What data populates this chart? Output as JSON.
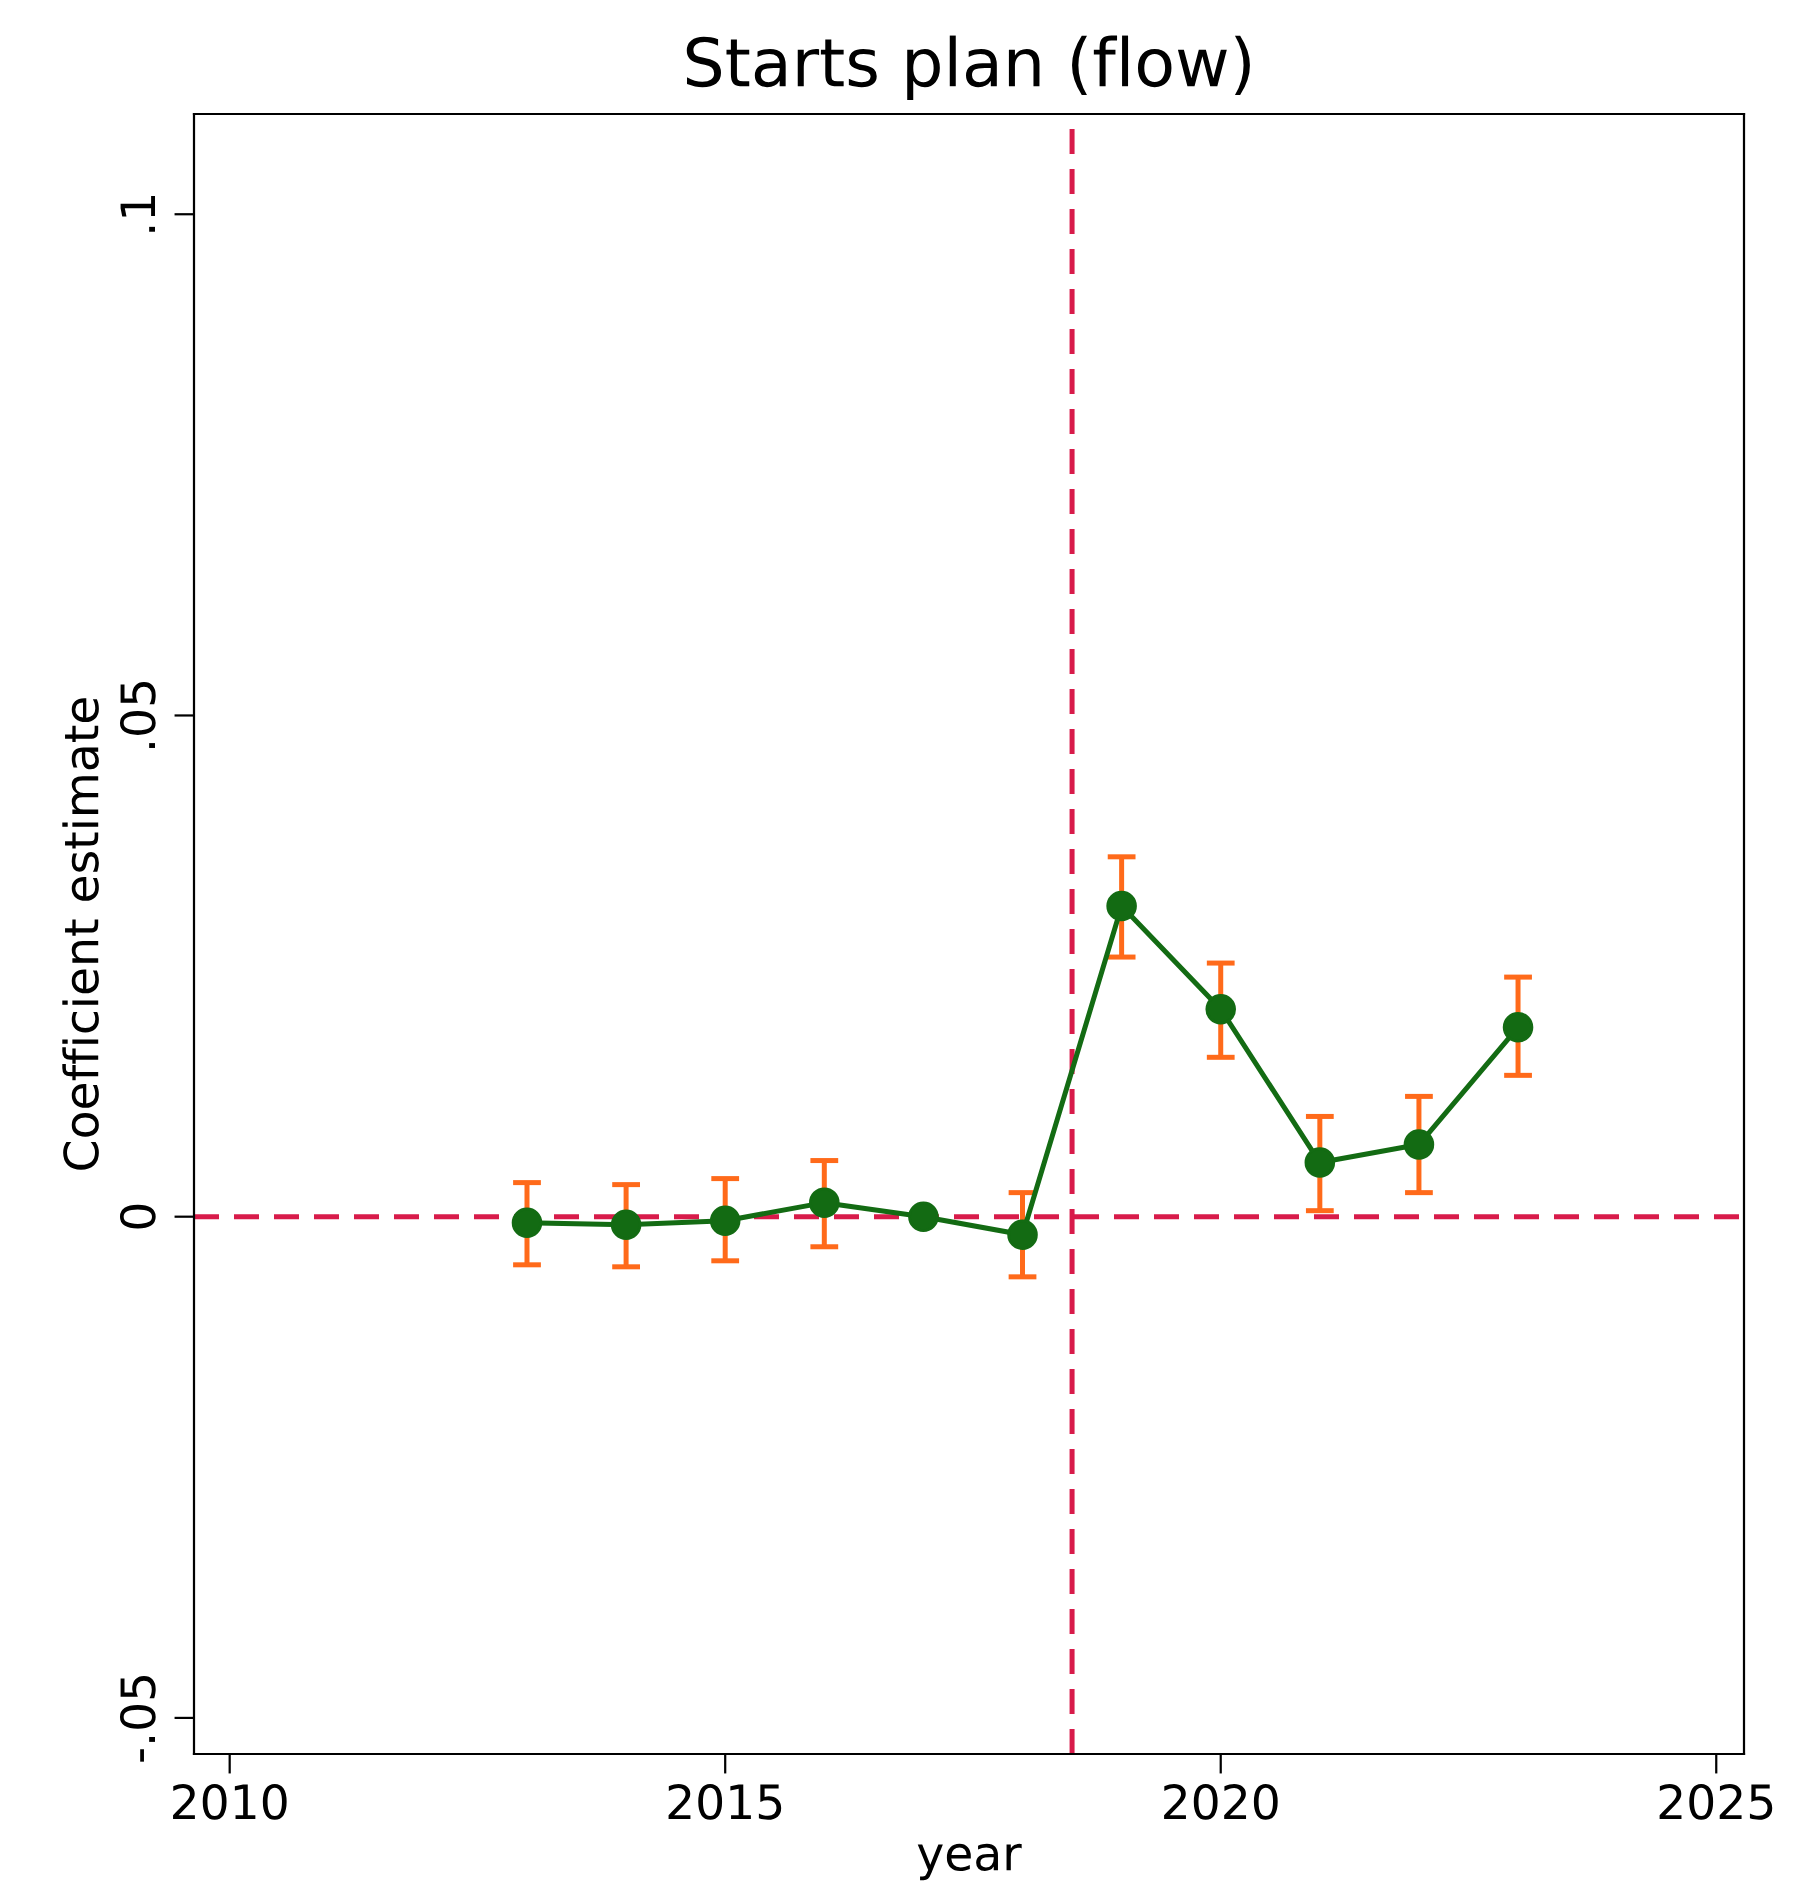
{
  "chart_data": {
    "type": "line",
    "title": "Starts plan (flow)",
    "xlabel": "year",
    "ylabel": "Coefficient estimate",
    "x": [
      2013,
      2014,
      2015,
      2016,
      2017,
      2018,
      2019,
      2020,
      2021,
      2022,
      2023
    ],
    "series": [
      {
        "color": "#136b13",
        "values": [
          -0.0006,
          -0.0008,
          -0.0004,
          0.0014,
          0,
          -0.0018,
          0.031,
          0.0207,
          0.0054,
          0.0072,
          0.0189
        ],
        "errors": [
          [
            -0.0048,
            0.0034
          ],
          [
            -0.005,
            0.0032
          ],
          [
            -0.0044,
            0.0038
          ],
          [
            -0.003,
            0.0056
          ],
          null,
          [
            -0.006,
            0.0024
          ],
          [
            0.0259,
            0.0359
          ],
          [
            0.0159,
            0.0253
          ],
          [
            0.0006,
            0.01
          ],
          [
            0.0024,
            0.012
          ],
          [
            0.0141,
            0.0239
          ]
        ]
      }
    ],
    "marker": "circle",
    "line_style": "solid",
    "xlim": [
      2009.64,
      2025.28
    ],
    "ylim": [
      -0.0536,
      0.11
    ],
    "xticks": [
      2010,
      2015,
      2020,
      2025
    ],
    "yticks": [
      {
        "value": -0.05,
        "label": "-.05"
      },
      {
        "value": 0,
        "label": "0"
      },
      {
        "value": 0.05,
        "label": ".05"
      },
      {
        "value": 0.1,
        "label": ".1"
      }
    ],
    "ref_lines": [
      {
        "axis": "y",
        "value": 0,
        "color": "#d81b4a",
        "line_style": "dashed"
      },
      {
        "axis": "x",
        "value": 2018.5,
        "color": "#d81b4a",
        "line_style": "dashed"
      }
    ],
    "grid": false
  }
}
